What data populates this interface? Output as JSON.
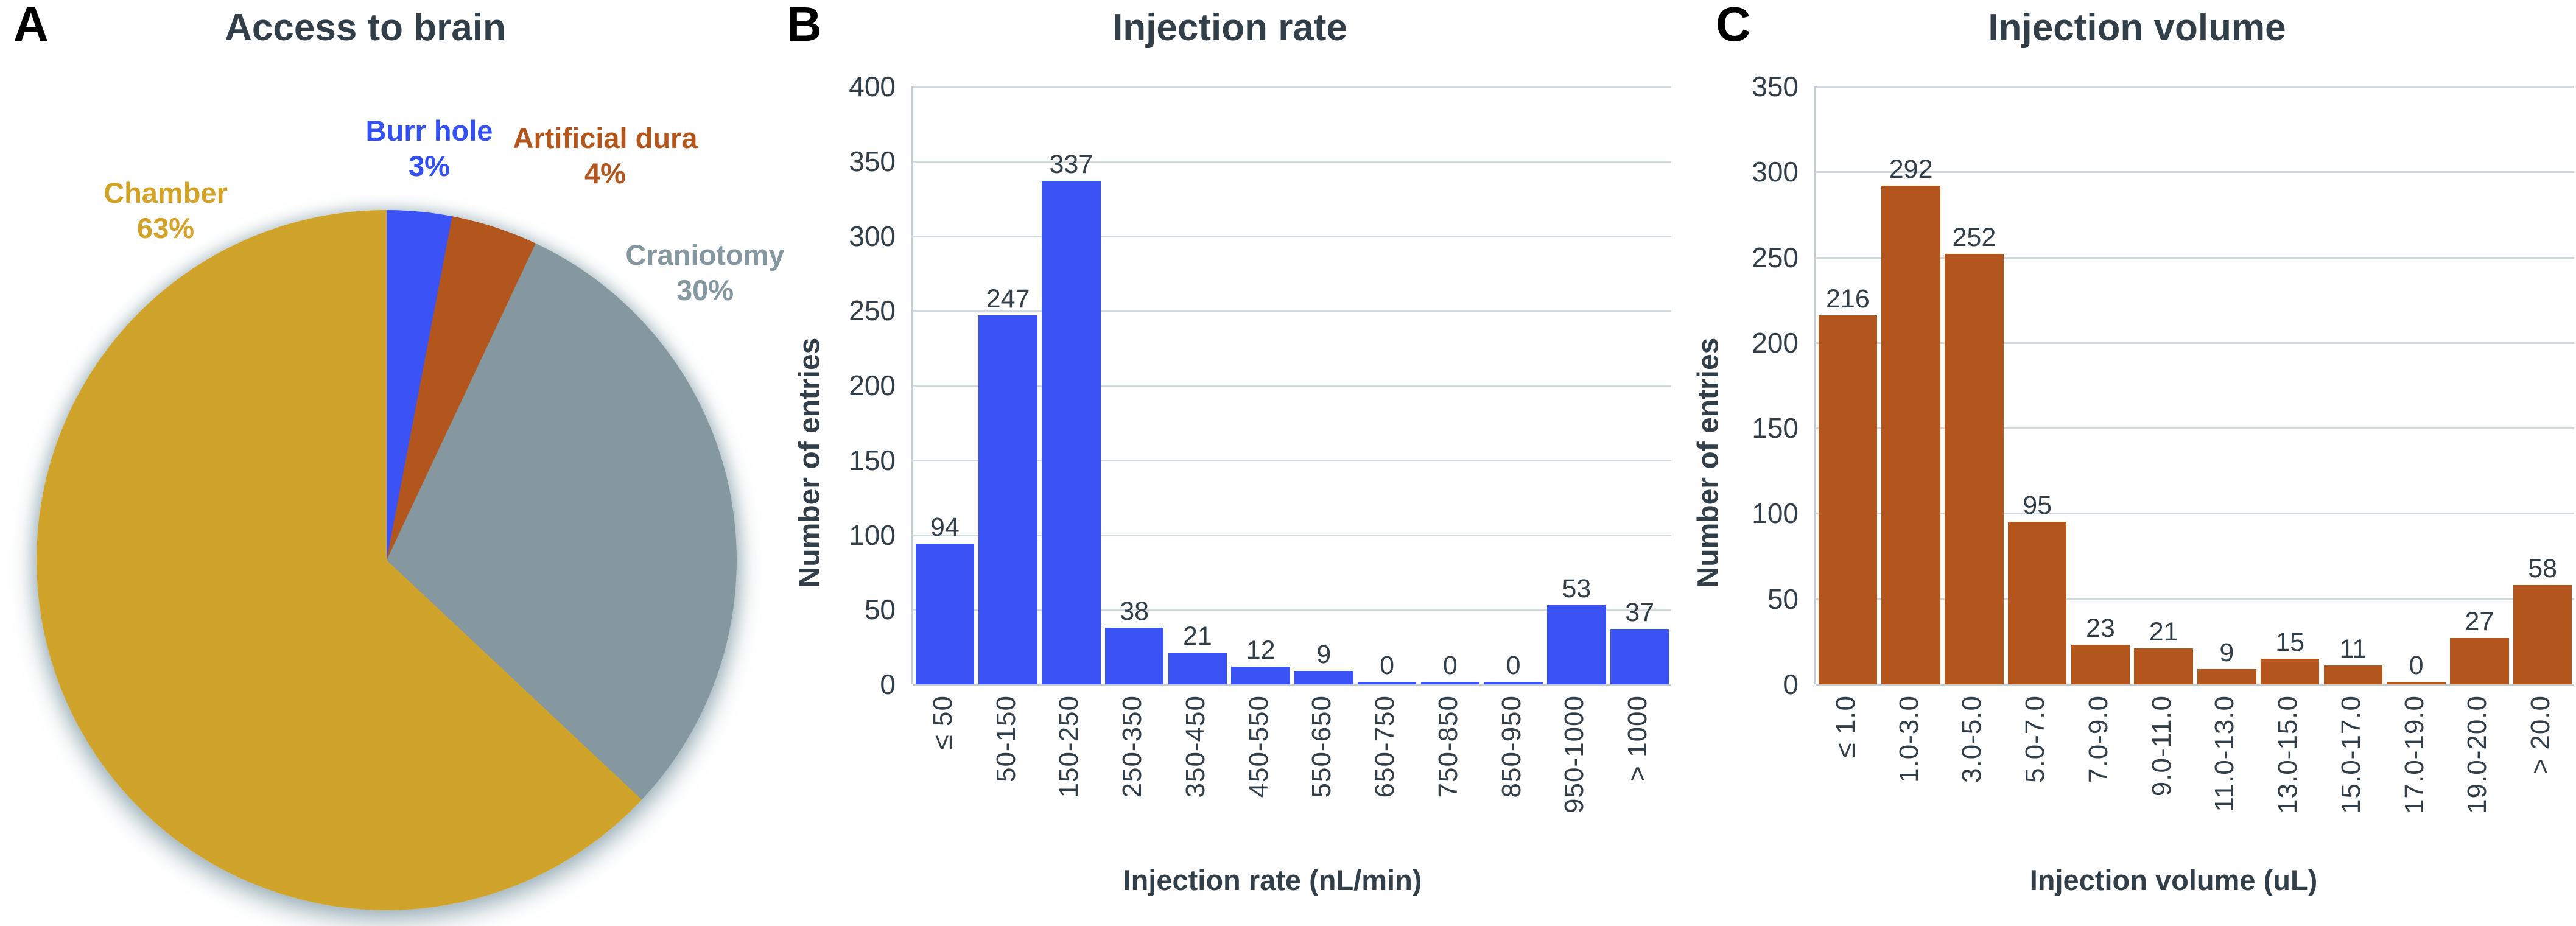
{
  "figure": {
    "panels": [
      {
        "letter": "A"
      },
      {
        "letter": "B"
      },
      {
        "letter": "C"
      }
    ]
  },
  "colors": {
    "background": "#FFFFFF",
    "text": "#333F48",
    "grid": "#D2D9DC",
    "axis": "#C3CCD0"
  },
  "chart_data": [
    {
      "type": "pie",
      "panel": "A",
      "title": "Access to brain",
      "categories": [
        "Burr hole",
        "Artificial dura",
        "Craniotomy",
        "Chamber"
      ],
      "values": [
        3,
        4,
        30,
        63
      ],
      "unit": "%",
      "start_angle_deg": 0,
      "direction": "clockwise",
      "colors": [
        "#3B52F5",
        "#B2561E",
        "#85979F",
        "#D0A42B"
      ],
      "label_colors": [
        "#3350F5",
        "#B2561E",
        "#85979F",
        "#D2A229"
      ]
    },
    {
      "type": "bar",
      "panel": "B",
      "title": "Injection rate",
      "xlabel": "Injection rate (nL/min)",
      "ylabel": "Number of entries",
      "categories": [
        "≤ 50",
        "50-150",
        "150-250",
        "250-350",
        "350-450",
        "450-550",
        "550-650",
        "650-750",
        "750-850",
        "850-950",
        "950-1000",
        "> 1000"
      ],
      "values": [
        94,
        247,
        337,
        38,
        21,
        12,
        9,
        0,
        0,
        0,
        53,
        37
      ],
      "ylim": [
        0,
        400
      ],
      "ytick_step": 50,
      "grid": true,
      "legend": "none",
      "bar_color": "#3B52F5"
    },
    {
      "type": "bar",
      "panel": "C",
      "title": "Injection volume",
      "xlabel": "Injection volume (uL)",
      "ylabel": "Number of entries",
      "categories": [
        "≤ 1.0",
        "1.0-3.0",
        "3.0-5.0",
        "5.0-7.0",
        "7.0-9.0",
        "9.0-11.0",
        "11.0-13.0",
        "13.0-15.0",
        "15.0-17.0",
        "17.0-19.0",
        "19.0-20.0",
        "> 20.0"
      ],
      "values": [
        216,
        292,
        252,
        95,
        23,
        21,
        9,
        15,
        11,
        0,
        27,
        58
      ],
      "ylim": [
        0,
        350
      ],
      "ytick_step": 50,
      "grid": true,
      "legend": "none",
      "bar_color": "#B2561E"
    }
  ]
}
